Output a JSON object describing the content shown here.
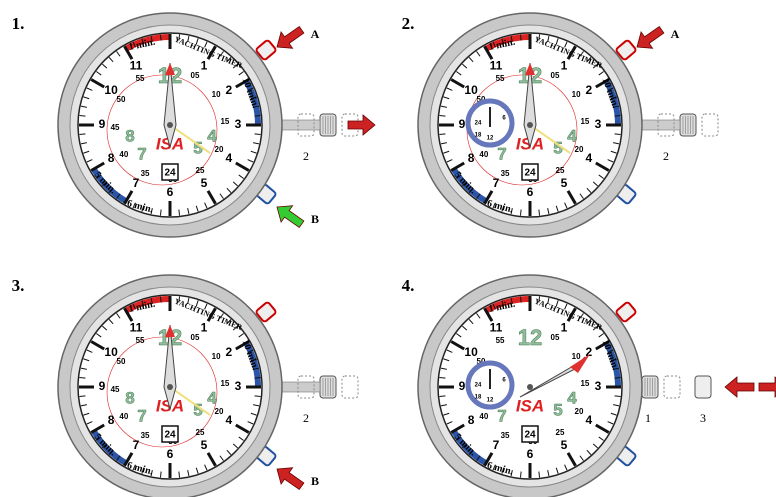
{
  "panels": [
    {
      "number": "1.",
      "callouts": [
        "A",
        "B"
      ],
      "positions": [
        "2"
      ]
    },
    {
      "number": "2.",
      "callouts": [
        "A"
      ],
      "positions": [
        "2"
      ]
    },
    {
      "number": "3.",
      "callouts": [
        "B"
      ],
      "positions": [
        "2"
      ]
    },
    {
      "number": "4.",
      "positions": [
        "1",
        "3"
      ]
    }
  ],
  "dial": {
    "hour_numbers": [
      "1",
      "2",
      "3",
      "4",
      "5",
      "6",
      "7",
      "8",
      "9",
      "10",
      "11"
    ],
    "minute_numbers": [
      "05",
      "10",
      "15",
      "20",
      "25",
      "30",
      "35",
      "40",
      "45",
      "50",
      "55"
    ],
    "big_numbers": [
      "12",
      "4",
      "5",
      "7",
      "8"
    ],
    "labels": [
      "1 min.",
      "YACHTING TIMER",
      "10 min.",
      "5 min.",
      "6 min."
    ],
    "brand": "ISA",
    "date": "24",
    "subdial_numbers": [
      "24",
      "6",
      "18",
      "12"
    ]
  }
}
